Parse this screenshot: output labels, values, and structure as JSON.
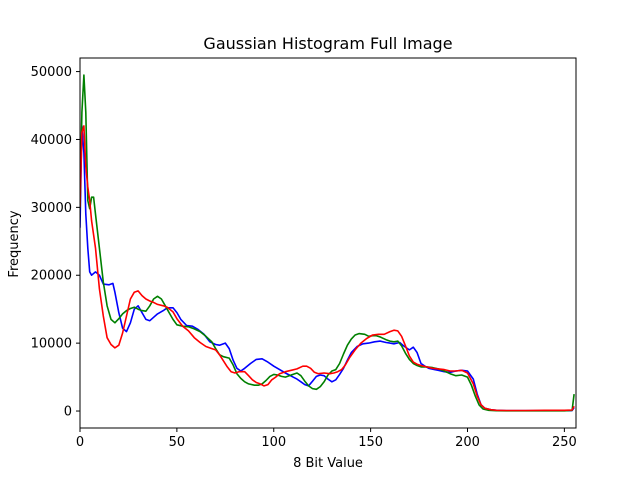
{
  "chart_data": {
    "type": "line",
    "title": "Gaussian Histogram Full Image",
    "xlabel": "8 Bit Value",
    "ylabel": "Frequency",
    "xlim": [
      0,
      256
    ],
    "ylim": [
      -2500,
      52000
    ],
    "grid": false,
    "legend": "none",
    "x_ticks": [
      0,
      50,
      100,
      150,
      200,
      250
    ],
    "y_ticks": [
      0,
      10000,
      20000,
      30000,
      40000,
      50000
    ],
    "series": [
      {
        "color": "#0000ff",
        "points": [
          [
            0,
            27000
          ],
          [
            1,
            42000
          ],
          [
            2,
            38000
          ],
          [
            3,
            29000
          ],
          [
            4,
            24000
          ],
          [
            5,
            20500
          ],
          [
            6,
            20000
          ],
          [
            8,
            20500
          ],
          [
            10,
            20000
          ],
          [
            12,
            18700
          ],
          [
            15,
            18600
          ],
          [
            17,
            18800
          ],
          [
            18,
            17500
          ],
          [
            20,
            14500
          ],
          [
            22,
            12200
          ],
          [
            24,
            11700
          ],
          [
            26,
            13000
          ],
          [
            28,
            15000
          ],
          [
            30,
            15500
          ],
          [
            32,
            14500
          ],
          [
            34,
            13500
          ],
          [
            36,
            13300
          ],
          [
            38,
            13800
          ],
          [
            40,
            14300
          ],
          [
            43,
            14800
          ],
          [
            45,
            15200
          ],
          [
            48,
            15200
          ],
          [
            50,
            14500
          ],
          [
            52,
            13500
          ],
          [
            55,
            12600
          ],
          [
            58,
            12500
          ],
          [
            61,
            12000
          ],
          [
            64,
            11300
          ],
          [
            67,
            10200
          ],
          [
            70,
            9800
          ],
          [
            72,
            9700
          ],
          [
            75,
            10000
          ],
          [
            77,
            9200
          ],
          [
            79,
            7500
          ],
          [
            81,
            6300
          ],
          [
            83,
            5900
          ],
          [
            85,
            6300
          ],
          [
            88,
            7000
          ],
          [
            91,
            7600
          ],
          [
            94,
            7700
          ],
          [
            97,
            7200
          ],
          [
            100,
            6600
          ],
          [
            103,
            6100
          ],
          [
            106,
            5600
          ],
          [
            108,
            5300
          ],
          [
            110,
            5000
          ],
          [
            112,
            4700
          ],
          [
            114,
            4300
          ],
          [
            116,
            3900
          ],
          [
            118,
            3700
          ],
          [
            120,
            4400
          ],
          [
            122,
            5100
          ],
          [
            124,
            5300
          ],
          [
            126,
            5200
          ],
          [
            128,
            4700
          ],
          [
            130,
            4300
          ],
          [
            132,
            4600
          ],
          [
            134,
            5400
          ],
          [
            136,
            6300
          ],
          [
            138,
            7500
          ],
          [
            140,
            8600
          ],
          [
            143,
            9500
          ],
          [
            146,
            9900
          ],
          [
            149,
            10000
          ],
          [
            152,
            10200
          ],
          [
            155,
            10300
          ],
          [
            158,
            10100
          ],
          [
            160,
            10000
          ],
          [
            162,
            9900
          ],
          [
            165,
            10100
          ],
          [
            167,
            9600
          ],
          [
            170,
            9000
          ],
          [
            172,
            9400
          ],
          [
            174,
            8600
          ],
          [
            176,
            7000
          ],
          [
            178,
            6600
          ],
          [
            180,
            6300
          ],
          [
            183,
            6100
          ],
          [
            185,
            6000
          ],
          [
            188,
            5800
          ],
          [
            191,
            5700
          ],
          [
            194,
            5900
          ],
          [
            197,
            6000
          ],
          [
            200,
            5900
          ],
          [
            203,
            4700
          ],
          [
            205,
            2500
          ],
          [
            207,
            900
          ],
          [
            209,
            400
          ],
          [
            212,
            200
          ],
          [
            215,
            100
          ],
          [
            220,
            50
          ],
          [
            230,
            50
          ],
          [
            240,
            50
          ],
          [
            250,
            50
          ],
          [
            254,
            60
          ],
          [
            255,
            500
          ]
        ]
      },
      {
        "color": "#008000",
        "points": [
          [
            0,
            30000
          ],
          [
            1,
            44000
          ],
          [
            2,
            49500
          ],
          [
            3,
            44000
          ],
          [
            4,
            31000
          ],
          [
            5,
            29800
          ],
          [
            6,
            31500
          ],
          [
            7,
            31500
          ],
          [
            8,
            29000
          ],
          [
            10,
            24000
          ],
          [
            12,
            19000
          ],
          [
            14,
            15500
          ],
          [
            16,
            13500
          ],
          [
            18,
            13000
          ],
          [
            20,
            13600
          ],
          [
            22,
            14300
          ],
          [
            24,
            14800
          ],
          [
            26,
            15100
          ],
          [
            28,
            15300
          ],
          [
            30,
            15000
          ],
          [
            32,
            14800
          ],
          [
            34,
            14700
          ],
          [
            36,
            15500
          ],
          [
            38,
            16500
          ],
          [
            40,
            16900
          ],
          [
            42,
            16500
          ],
          [
            44,
            15500
          ],
          [
            46,
            14500
          ],
          [
            48,
            13500
          ],
          [
            50,
            12700
          ],
          [
            53,
            12500
          ],
          [
            56,
            12400
          ],
          [
            59,
            12100
          ],
          [
            62,
            11700
          ],
          [
            65,
            11000
          ],
          [
            68,
            10200
          ],
          [
            70,
            9200
          ],
          [
            72,
            8300
          ],
          [
            74,
            8000
          ],
          [
            77,
            7800
          ],
          [
            79,
            6800
          ],
          [
            81,
            5500
          ],
          [
            83,
            4800
          ],
          [
            85,
            4300
          ],
          [
            87,
            4000
          ],
          [
            90,
            3800
          ],
          [
            92,
            3800
          ],
          [
            94,
            4000
          ],
          [
            96,
            4500
          ],
          [
            98,
            5100
          ],
          [
            100,
            5400
          ],
          [
            102,
            5300
          ],
          [
            104,
            5100
          ],
          [
            106,
            5000
          ],
          [
            109,
            5300
          ],
          [
            112,
            5600
          ],
          [
            114,
            5200
          ],
          [
            116,
            4400
          ],
          [
            118,
            3700
          ],
          [
            120,
            3300
          ],
          [
            122,
            3200
          ],
          [
            124,
            3600
          ],
          [
            126,
            4300
          ],
          [
            128,
            5300
          ],
          [
            130,
            5900
          ],
          [
            132,
            6100
          ],
          [
            134,
            7000
          ],
          [
            136,
            8400
          ],
          [
            138,
            9700
          ],
          [
            140,
            10600
          ],
          [
            142,
            11200
          ],
          [
            144,
            11400
          ],
          [
            147,
            11300
          ],
          [
            149,
            11000
          ],
          [
            151,
            11100
          ],
          [
            153,
            11100
          ],
          [
            155,
            10900
          ],
          [
            158,
            10500
          ],
          [
            160,
            10300
          ],
          [
            162,
            10200
          ],
          [
            164,
            10300
          ],
          [
            166,
            9600
          ],
          [
            168,
            8500
          ],
          [
            170,
            7600
          ],
          [
            172,
            7000
          ],
          [
            174,
            6700
          ],
          [
            176,
            6500
          ],
          [
            179,
            6500
          ],
          [
            182,
            6400
          ],
          [
            185,
            6200
          ],
          [
            188,
            5900
          ],
          [
            191,
            5500
          ],
          [
            194,
            5200
          ],
          [
            197,
            5300
          ],
          [
            200,
            5000
          ],
          [
            202,
            3800
          ],
          [
            204,
            2200
          ],
          [
            206,
            900
          ],
          [
            208,
            300
          ],
          [
            211,
            100
          ],
          [
            215,
            50
          ],
          [
            220,
            30
          ],
          [
            230,
            30
          ],
          [
            240,
            30
          ],
          [
            250,
            30
          ],
          [
            254,
            100
          ],
          [
            255,
            2500
          ]
        ]
      },
      {
        "color": "#ff0000",
        "points": [
          [
            0,
            30000
          ],
          [
            1,
            41000
          ],
          [
            2,
            42000
          ],
          [
            3,
            36000
          ],
          [
            4,
            33000
          ],
          [
            5,
            31000
          ],
          [
            6,
            28000
          ],
          [
            8,
            24000
          ],
          [
            10,
            18000
          ],
          [
            12,
            14000
          ],
          [
            14,
            10800
          ],
          [
            16,
            9800
          ],
          [
            18,
            9300
          ],
          [
            20,
            9700
          ],
          [
            22,
            11500
          ],
          [
            24,
            14000
          ],
          [
            26,
            16500
          ],
          [
            28,
            17500
          ],
          [
            30,
            17700
          ],
          [
            32,
            17000
          ],
          [
            34,
            16500
          ],
          [
            36,
            16200
          ],
          [
            38,
            16000
          ],
          [
            40,
            15700
          ],
          [
            43,
            15500
          ],
          [
            45,
            15300
          ],
          [
            48,
            14600
          ],
          [
            50,
            13600
          ],
          [
            53,
            12500
          ],
          [
            56,
            11800
          ],
          [
            59,
            10800
          ],
          [
            62,
            10100
          ],
          [
            65,
            9500
          ],
          [
            68,
            9200
          ],
          [
            70,
            9000
          ],
          [
            72,
            8300
          ],
          [
            74,
            7400
          ],
          [
            76,
            6500
          ],
          [
            78,
            5800
          ],
          [
            80,
            5600
          ],
          [
            82,
            5800
          ],
          [
            85,
            5800
          ],
          [
            87,
            5200
          ],
          [
            89,
            4600
          ],
          [
            91,
            4200
          ],
          [
            93,
            4000
          ],
          [
            95,
            3700
          ],
          [
            97,
            3900
          ],
          [
            99,
            4600
          ],
          [
            101,
            5000
          ],
          [
            103,
            5500
          ],
          [
            106,
            5800
          ],
          [
            109,
            6000
          ],
          [
            112,
            6200
          ],
          [
            115,
            6600
          ],
          [
            117,
            6600
          ],
          [
            119,
            6300
          ],
          [
            121,
            5700
          ],
          [
            123,
            5500
          ],
          [
            126,
            5600
          ],
          [
            129,
            5500
          ],
          [
            131,
            5600
          ],
          [
            133,
            5800
          ],
          [
            135,
            6100
          ],
          [
            137,
            6800
          ],
          [
            139,
            7800
          ],
          [
            142,
            9000
          ],
          [
            145,
            10000
          ],
          [
            148,
            10700
          ],
          [
            151,
            11200
          ],
          [
            154,
            11300
          ],
          [
            157,
            11300
          ],
          [
            160,
            11700
          ],
          [
            162,
            11900
          ],
          [
            164,
            11800
          ],
          [
            166,
            11000
          ],
          [
            168,
            9600
          ],
          [
            170,
            8100
          ],
          [
            172,
            7200
          ],
          [
            174,
            6900
          ],
          [
            176,
            6700
          ],
          [
            179,
            6500
          ],
          [
            182,
            6300
          ],
          [
            185,
            6200
          ],
          [
            188,
            6100
          ],
          [
            191,
            5900
          ],
          [
            194,
            5900
          ],
          [
            197,
            6000
          ],
          [
            200,
            5600
          ],
          [
            203,
            4000
          ],
          [
            205,
            2200
          ],
          [
            207,
            900
          ],
          [
            209,
            400
          ],
          [
            212,
            200
          ],
          [
            215,
            100
          ],
          [
            220,
            80
          ],
          [
            230,
            80
          ],
          [
            240,
            100
          ],
          [
            250,
            100
          ],
          [
            254,
            150
          ],
          [
            255,
            700
          ]
        ]
      }
    ]
  }
}
